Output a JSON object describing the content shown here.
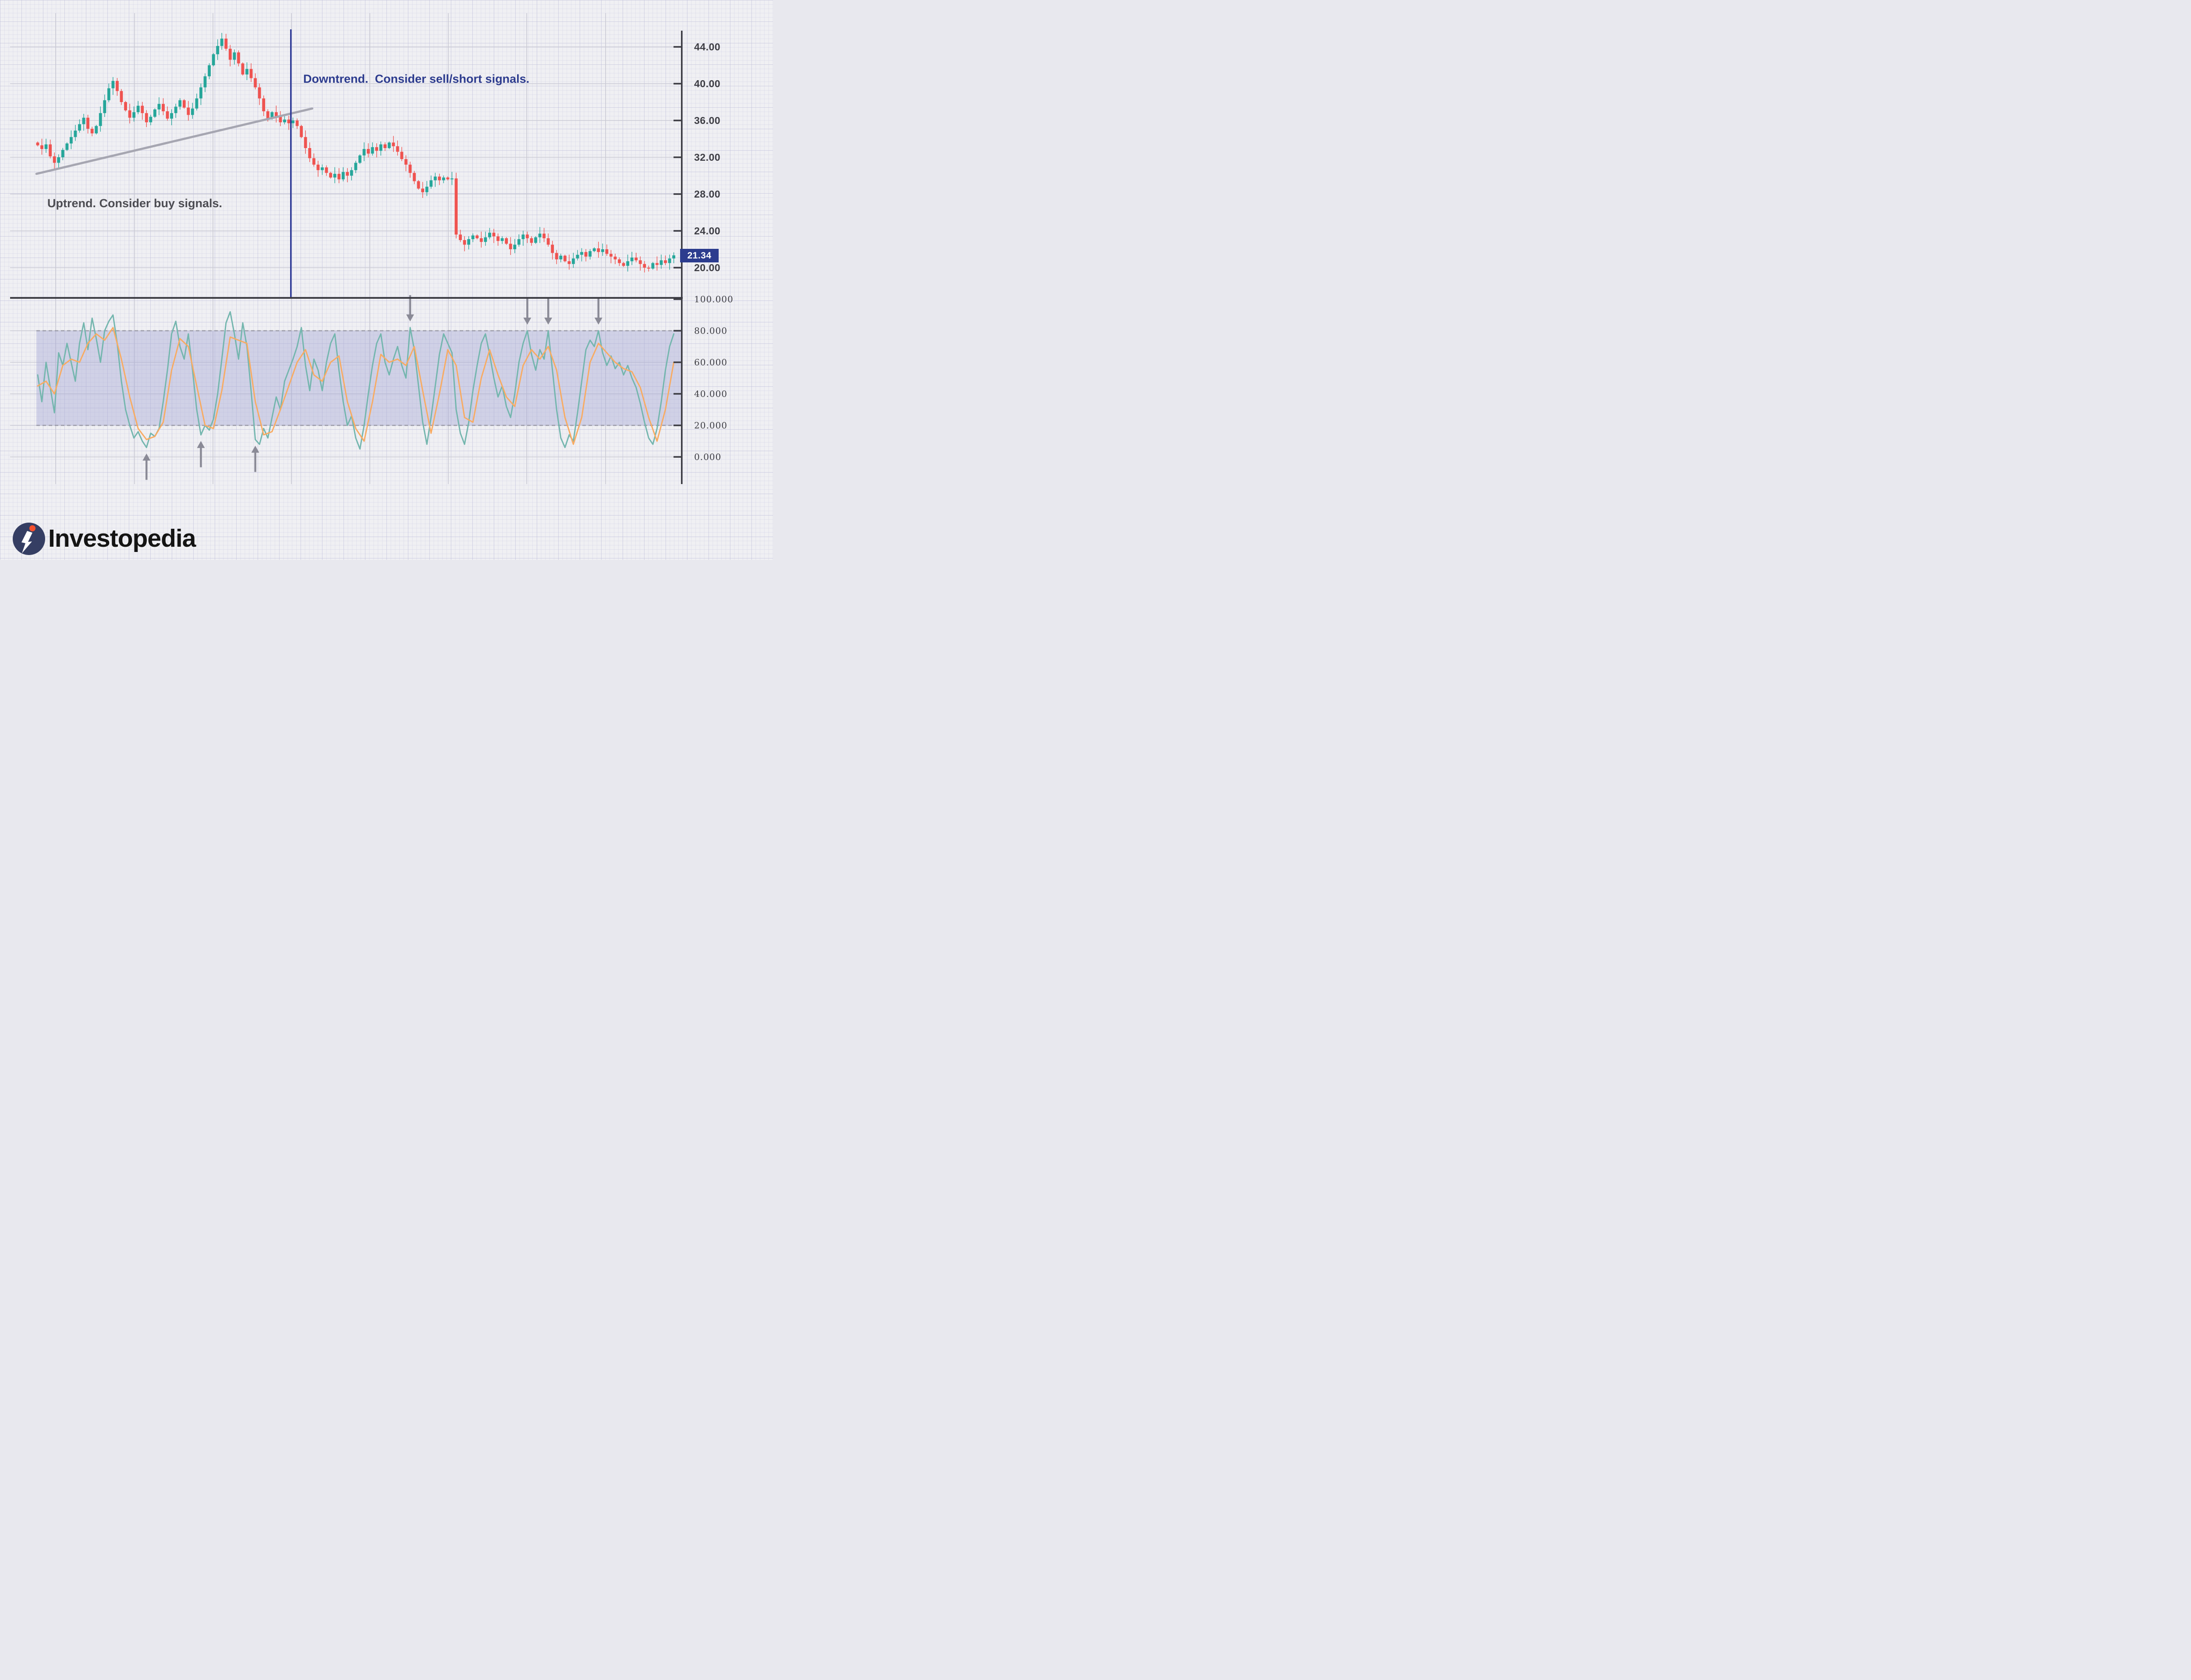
{
  "page": {
    "background": "#f0f0f3",
    "grid": "graph-paper"
  },
  "branding": {
    "logo_text": "Investopedia",
    "logo_circle_color": "#353e63",
    "logo_dot_color": "#f4502e"
  },
  "price_label": {
    "value": "21.34",
    "bg": "#2c3c8e",
    "fg": "#ffffff"
  },
  "colors": {
    "candle_up": "#26a69a",
    "candle_down": "#ef5350",
    "trendline": "#a6a6b1",
    "vline": "#2e3a97",
    "axis": "#3d3d44",
    "gridline_major": "#c9c9d4",
    "band_fill": "rgba(164,168,212,0.42)",
    "band_border": "#9a9aa8",
    "stoch_k": "#74b6ae",
    "stoch_d": "#f8ab62",
    "arrow": "#8a8a96"
  },
  "chart_data": [
    {
      "type": "candlestick",
      "panel": "price",
      "title": "",
      "xlabel": "",
      "ylabel": "",
      "y_ticks": [
        44,
        40,
        36,
        32,
        28,
        24,
        20
      ],
      "y_tick_labels": [
        "44.00",
        "40.00",
        "36.00",
        "32.00",
        "28.00",
        "24.00",
        "20.00"
      ],
      "ylim": [
        17.5,
        46
      ],
      "grid": true,
      "first_open": 33.6,
      "closes": [
        33.3,
        32.9,
        33.4,
        32.1,
        31.4,
        32.0,
        32.8,
        33.5,
        34.2,
        34.9,
        35.6,
        36.3,
        35.1,
        34.6,
        35.4,
        36.8,
        38.2,
        39.5,
        40.3,
        39.2,
        38.0,
        37.1,
        36.3,
        36.9,
        37.6,
        36.8,
        35.8,
        36.4,
        37.2,
        37.8,
        37.0,
        36.2,
        36.8,
        37.5,
        38.2,
        37.4,
        36.6,
        37.3,
        38.4,
        39.6,
        40.8,
        42.0,
        43.2,
        44.1,
        44.9,
        43.8,
        42.6,
        43.4,
        42.2,
        41.0,
        41.6,
        40.6,
        39.6,
        38.4,
        37.0,
        36.2,
        36.9,
        36.4,
        35.8,
        36.1,
        35.7,
        36.0,
        35.4,
        34.2,
        33.0,
        31.9,
        31.2,
        30.6,
        30.9,
        30.3,
        29.8,
        30.2,
        29.6,
        30.4,
        30.0,
        30.6,
        31.4,
        32.2,
        32.9,
        32.4,
        33.1,
        32.7,
        33.4,
        33.0,
        33.6,
        33.2,
        32.6,
        31.8,
        31.2,
        30.3,
        29.4,
        28.6,
        28.2,
        28.8,
        29.5,
        29.9,
        29.5,
        29.8,
        29.6,
        29.7,
        23.6,
        23.0,
        22.5,
        23.1,
        23.5,
        23.2,
        22.8,
        23.3,
        23.8,
        23.4,
        22.9,
        23.2,
        22.6,
        22.0,
        22.5,
        23.1,
        23.6,
        23.2,
        22.7,
        23.3,
        23.7,
        23.2,
        22.5,
        21.6,
        20.9,
        21.3,
        20.7,
        20.4,
        21.0,
        21.4,
        21.7,
        21.2,
        21.8,
        22.1,
        21.7,
        22.0,
        21.5,
        21.2,
        20.9,
        20.5,
        20.2,
        20.7,
        21.1,
        20.8,
        20.4,
        20.0,
        19.9,
        20.5,
        20.3,
        20.8,
        20.5,
        21.0,
        21.34
      ],
      "last_price": 21.34,
      "trendline": {
        "from_index": -0.3,
        "from_price": 30.2,
        "to_index": 65.6,
        "to_price": 37.3
      },
      "vline_index": 60.5,
      "text_annotations": {
        "uptrend": "Uptrend. Consider buy signals.",
        "downtrend": "Downtrend.  Consider sell/short signals."
      }
    },
    {
      "type": "line",
      "panel": "stochastic-oscillator",
      "y_ticks": [
        100,
        80,
        60,
        40,
        20,
        0
      ],
      "y_tick_labels": [
        "100.000",
        "80.000",
        "60.000",
        "40.000",
        "20.000",
        "0.000"
      ],
      "ylim": [
        -10,
        105
      ],
      "overbought_oversold_band": [
        20,
        80
      ],
      "series": [
        {
          "name": "%K",
          "color": "#74b6ae",
          "points": [
            [
              0,
              52
            ],
            [
              1,
              35
            ],
            [
              2,
              60
            ],
            [
              3,
              44
            ],
            [
              4,
              28
            ],
            [
              5,
              66
            ],
            [
              6,
              58
            ],
            [
              7,
              72
            ],
            [
              8,
              60
            ],
            [
              9,
              48
            ],
            [
              10,
              72
            ],
            [
              11,
              85
            ],
            [
              12,
              68
            ],
            [
              13,
              88
            ],
            [
              14,
              75
            ],
            [
              15,
              60
            ],
            [
              16,
              80
            ],
            [
              17,
              86
            ],
            [
              18,
              90
            ],
            [
              19,
              72
            ],
            [
              20,
              48
            ],
            [
              21,
              30
            ],
            [
              22,
              20
            ],
            [
              23,
              12
            ],
            [
              24,
              16
            ],
            [
              25,
              10
            ],
            [
              26,
              6
            ],
            [
              27,
              15
            ],
            [
              28,
              13
            ],
            [
              29,
              18
            ],
            [
              30,
              35
            ],
            [
              31,
              55
            ],
            [
              32,
              78
            ],
            [
              33,
              86
            ],
            [
              34,
              70
            ],
            [
              35,
              62
            ],
            [
              36,
              78
            ],
            [
              37,
              55
            ],
            [
              38,
              30
            ],
            [
              39,
              14
            ],
            [
              40,
              20
            ],
            [
              41,
              17
            ],
            [
              42,
              24
            ],
            [
              43,
              40
            ],
            [
              44,
              62
            ],
            [
              45,
              85
            ],
            [
              46,
              92
            ],
            [
              47,
              78
            ],
            [
              48,
              62
            ],
            [
              49,
              85
            ],
            [
              50,
              70
            ],
            [
              51,
              42
            ],
            [
              52,
              11
            ],
            [
              53,
              8
            ],
            [
              54,
              18
            ],
            [
              55,
              12
            ],
            [
              56,
              25
            ],
            [
              57,
              38
            ],
            [
              58,
              30
            ],
            [
              59,
              48
            ],
            [
              60,
              55
            ],
            [
              61,
              62
            ],
            [
              62,
              70
            ],
            [
              63,
              82
            ],
            [
              64,
              58
            ],
            [
              65,
              42
            ],
            [
              66,
              62
            ],
            [
              67,
              55
            ],
            [
              68,
              42
            ],
            [
              69,
              60
            ],
            [
              70,
              72
            ],
            [
              71,
              78
            ],
            [
              72,
              55
            ],
            [
              73,
              35
            ],
            [
              74,
              20
            ],
            [
              75,
              26
            ],
            [
              76,
              12
            ],
            [
              77,
              5
            ],
            [
              78,
              20
            ],
            [
              79,
              40
            ],
            [
              80,
              58
            ],
            [
              81,
              72
            ],
            [
              82,
              78
            ],
            [
              83,
              60
            ],
            [
              84,
              52
            ],
            [
              85,
              62
            ],
            [
              86,
              70
            ],
            [
              87,
              58
            ],
            [
              88,
              50
            ],
            [
              89,
              82
            ],
            [
              90,
              68
            ],
            [
              91,
              45
            ],
            [
              92,
              22
            ],
            [
              93,
              8
            ],
            [
              94,
              25
            ],
            [
              95,
              45
            ],
            [
              96,
              65
            ],
            [
              97,
              78
            ],
            [
              98,
              72
            ],
            [
              99,
              66
            ],
            [
              100,
              30
            ],
            [
              101,
              15
            ],
            [
              102,
              8
            ],
            [
              103,
              22
            ],
            [
              104,
              42
            ],
            [
              105,
              58
            ],
            [
              106,
              72
            ],
            [
              107,
              78
            ],
            [
              108,
              65
            ],
            [
              109,
              50
            ],
            [
              110,
              38
            ],
            [
              111,
              45
            ],
            [
              112,
              32
            ],
            [
              113,
              25
            ],
            [
              114,
              40
            ],
            [
              115,
              60
            ],
            [
              116,
              72
            ],
            [
              117,
              80
            ],
            [
              118,
              65
            ],
            [
              119,
              55
            ],
            [
              120,
              68
            ],
            [
              121,
              62
            ],
            [
              122,
              80
            ],
            [
              123,
              55
            ],
            [
              124,
              30
            ],
            [
              125,
              12
            ],
            [
              126,
              6
            ],
            [
              127,
              14
            ],
            [
              128,
              10
            ],
            [
              129,
              28
            ],
            [
              130,
              48
            ],
            [
              131,
              68
            ],
            [
              132,
              74
            ],
            [
              133,
              70
            ],
            [
              134,
              80
            ],
            [
              135,
              66
            ],
            [
              136,
              58
            ],
            [
              137,
              64
            ],
            [
              138,
              56
            ],
            [
              139,
              60
            ],
            [
              140,
              52
            ],
            [
              141,
              58
            ],
            [
              142,
              50
            ],
            [
              143,
              44
            ],
            [
              144,
              34
            ],
            [
              145,
              22
            ],
            [
              146,
              12
            ],
            [
              147,
              8
            ],
            [
              148,
              18
            ],
            [
              149,
              35
            ],
            [
              150,
              55
            ],
            [
              151,
              70
            ],
            [
              152,
              78
            ]
          ]
        },
        {
          "name": "%D",
          "color": "#f8ab62",
          "points": [
            [
              0,
              45
            ],
            [
              2,
              48
            ],
            [
              4,
              40
            ],
            [
              6,
              58
            ],
            [
              8,
              62
            ],
            [
              10,
              60
            ],
            [
              12,
              72
            ],
            [
              14,
              78
            ],
            [
              16,
              74
            ],
            [
              18,
              82
            ],
            [
              20,
              62
            ],
            [
              22,
              38
            ],
            [
              24,
              18
            ],
            [
              26,
              11
            ],
            [
              28,
              13
            ],
            [
              30,
              22
            ],
            [
              32,
              55
            ],
            [
              34,
              75
            ],
            [
              36,
              70
            ],
            [
              38,
              45
            ],
            [
              40,
              20
            ],
            [
              42,
              18
            ],
            [
              44,
              42
            ],
            [
              46,
              76
            ],
            [
              48,
              74
            ],
            [
              50,
              72
            ],
            [
              52,
              35
            ],
            [
              54,
              14
            ],
            [
              56,
              16
            ],
            [
              58,
              30
            ],
            [
              60,
              45
            ],
            [
              62,
              60
            ],
            [
              64,
              68
            ],
            [
              66,
              52
            ],
            [
              68,
              48
            ],
            [
              70,
              60
            ],
            [
              72,
              64
            ],
            [
              74,
              35
            ],
            [
              76,
              18
            ],
            [
              78,
              10
            ],
            [
              80,
              35
            ],
            [
              82,
              65
            ],
            [
              84,
              60
            ],
            [
              86,
              62
            ],
            [
              88,
              58
            ],
            [
              90,
              70
            ],
            [
              92,
              42
            ],
            [
              94,
              15
            ],
            [
              96,
              40
            ],
            [
              98,
              68
            ],
            [
              100,
              58
            ],
            [
              102,
              25
            ],
            [
              104,
              22
            ],
            [
              106,
              50
            ],
            [
              108,
              68
            ],
            [
              110,
              52
            ],
            [
              112,
              38
            ],
            [
              114,
              32
            ],
            [
              116,
              58
            ],
            [
              118,
              68
            ],
            [
              120,
              62
            ],
            [
              122,
              70
            ],
            [
              124,
              55
            ],
            [
              126,
              25
            ],
            [
              128,
              8
            ],
            [
              130,
              25
            ],
            [
              132,
              60
            ],
            [
              134,
              72
            ],
            [
              136,
              66
            ],
            [
              138,
              60
            ],
            [
              140,
              56
            ],
            [
              142,
              54
            ],
            [
              144,
              44
            ],
            [
              146,
              25
            ],
            [
              148,
              10
            ],
            [
              150,
              30
            ],
            [
              152,
              60
            ]
          ]
        }
      ],
      "signal_arrows": {
        "up": [
          {
            "index": 26,
            "value": 6
          },
          {
            "index": 39,
            "value": 14
          },
          {
            "index": 52,
            "value": 11
          }
        ],
        "down": [
          {
            "index": 89,
            "value": 82
          },
          {
            "index": 117,
            "value": 80
          },
          {
            "index": 122,
            "value": 80
          },
          {
            "index": 134,
            "value": 80
          }
        ]
      }
    }
  ]
}
